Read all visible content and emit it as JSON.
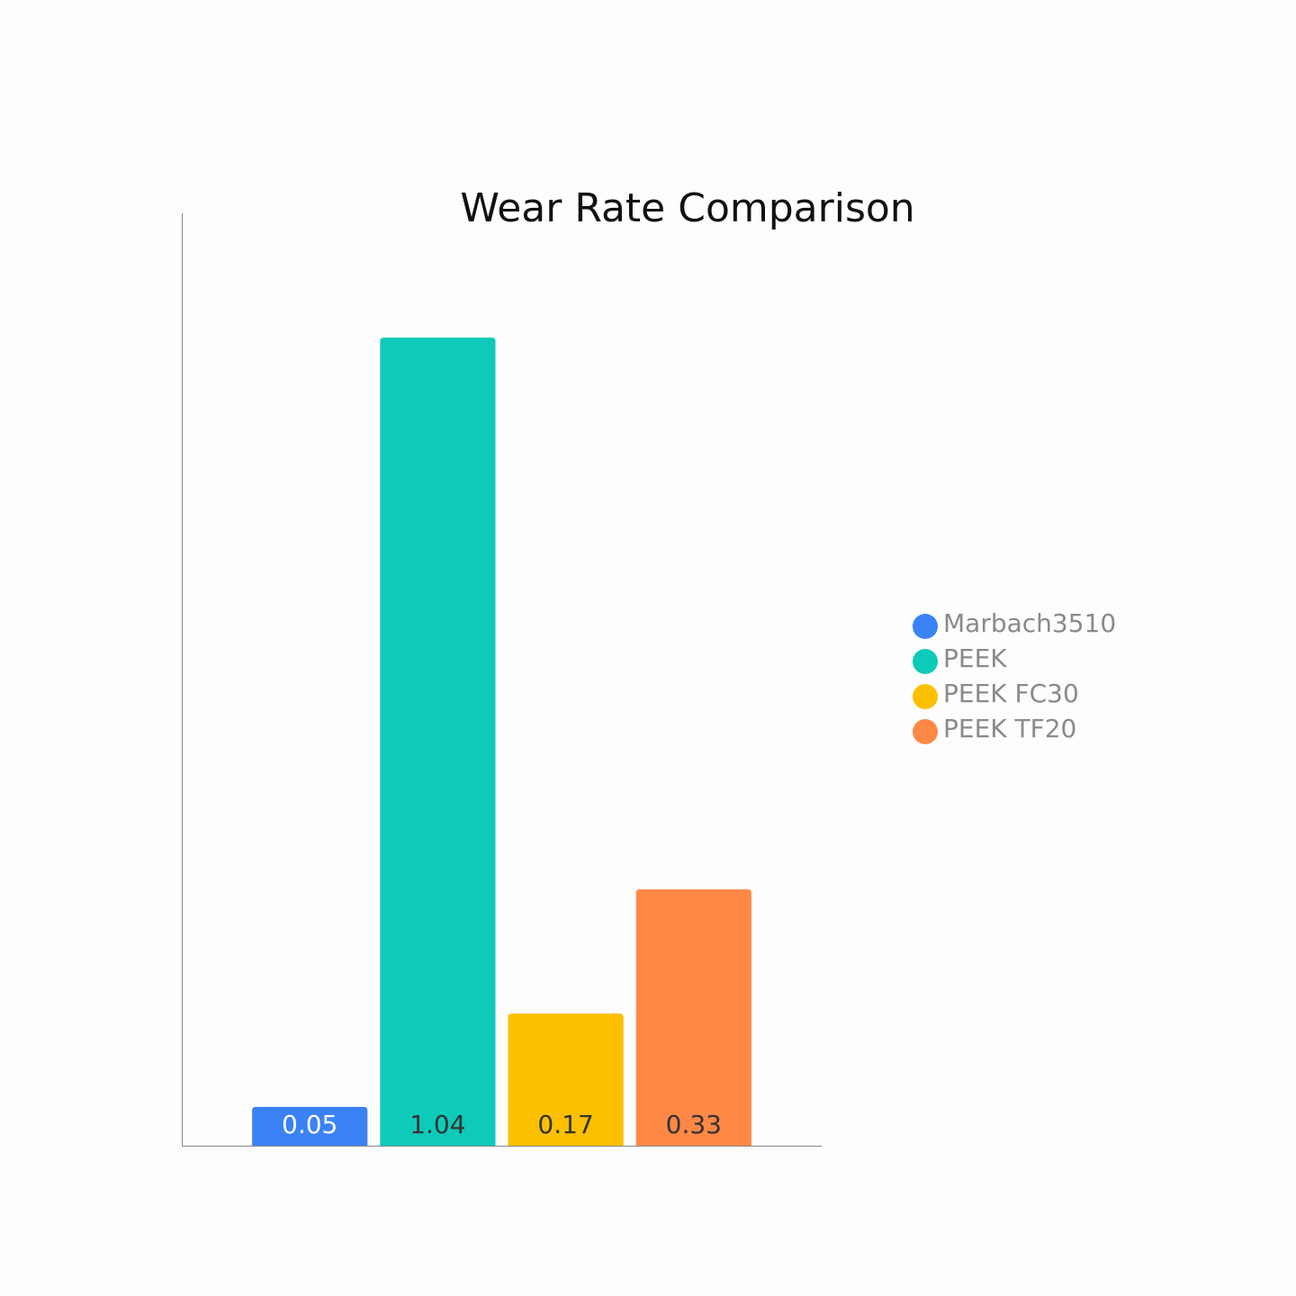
{
  "chart_data": {
    "type": "bar",
    "title": "Wear Rate Comparison",
    "categories": [
      null
    ],
    "series": [
      {
        "name": "Marbach3510",
        "color": "#3b82f6",
        "values": [
          0.05
        ]
      },
      {
        "name": "PEEK",
        "color": "#0ecab8",
        "values": [
          1.04
        ]
      },
      {
        "name": "PEEK FC30",
        "color": "#fcc000",
        "values": [
          0.17
        ]
      },
      {
        "name": "PEEK TF20",
        "color": "#ff8847",
        "values": [
          0.33
        ]
      }
    ],
    "ylim": [
      0,
      1.2
    ],
    "legend": "right"
  }
}
